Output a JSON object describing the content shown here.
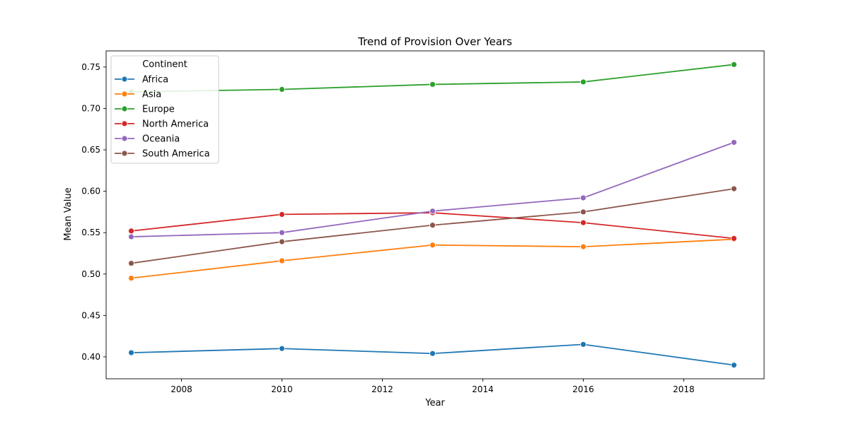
{
  "chart_data": {
    "type": "line",
    "title": "Trend of Provision Over Years",
    "xlabel": "Year",
    "ylabel": "Mean Value",
    "x": [
      2007,
      2010,
      2013,
      2016,
      2019
    ],
    "xlim": [
      2006.5,
      2019.6
    ],
    "ylim": [
      0.3735,
      0.7695
    ],
    "xticks": [
      2008,
      2010,
      2012,
      2014,
      2016,
      2018
    ],
    "yticks": [
      0.4,
      0.45,
      0.5,
      0.55,
      0.6,
      0.65,
      0.7,
      0.75
    ],
    "ytick_labels": [
      "0.40",
      "0.45",
      "0.50",
      "0.55",
      "0.60",
      "0.65",
      "0.70",
      "0.75"
    ],
    "grid": false,
    "legend": {
      "title": "Continent",
      "placement": "top-left"
    },
    "series": [
      {
        "name": "Africa",
        "color": "#1f77b4",
        "values": [
          0.405,
          0.41,
          0.404,
          0.415,
          0.39
        ]
      },
      {
        "name": "Asia",
        "color": "#ff7f0e",
        "values": [
          0.495,
          0.516,
          0.535,
          0.533,
          0.542
        ]
      },
      {
        "name": "Europe",
        "color": "#2ca02c",
        "values": [
          0.72,
          0.723,
          0.729,
          0.732,
          0.753
        ]
      },
      {
        "name": "North America",
        "color": "#d62728",
        "values": [
          0.552,
          0.572,
          0.574,
          0.562,
          0.543
        ]
      },
      {
        "name": "Oceania",
        "color": "#9467bd",
        "values": [
          0.545,
          0.55,
          0.576,
          0.592,
          0.659
        ]
      },
      {
        "name": "South America",
        "color": "#8c564b",
        "values": [
          0.513,
          0.539,
          0.559,
          0.575,
          0.603
        ]
      }
    ]
  }
}
